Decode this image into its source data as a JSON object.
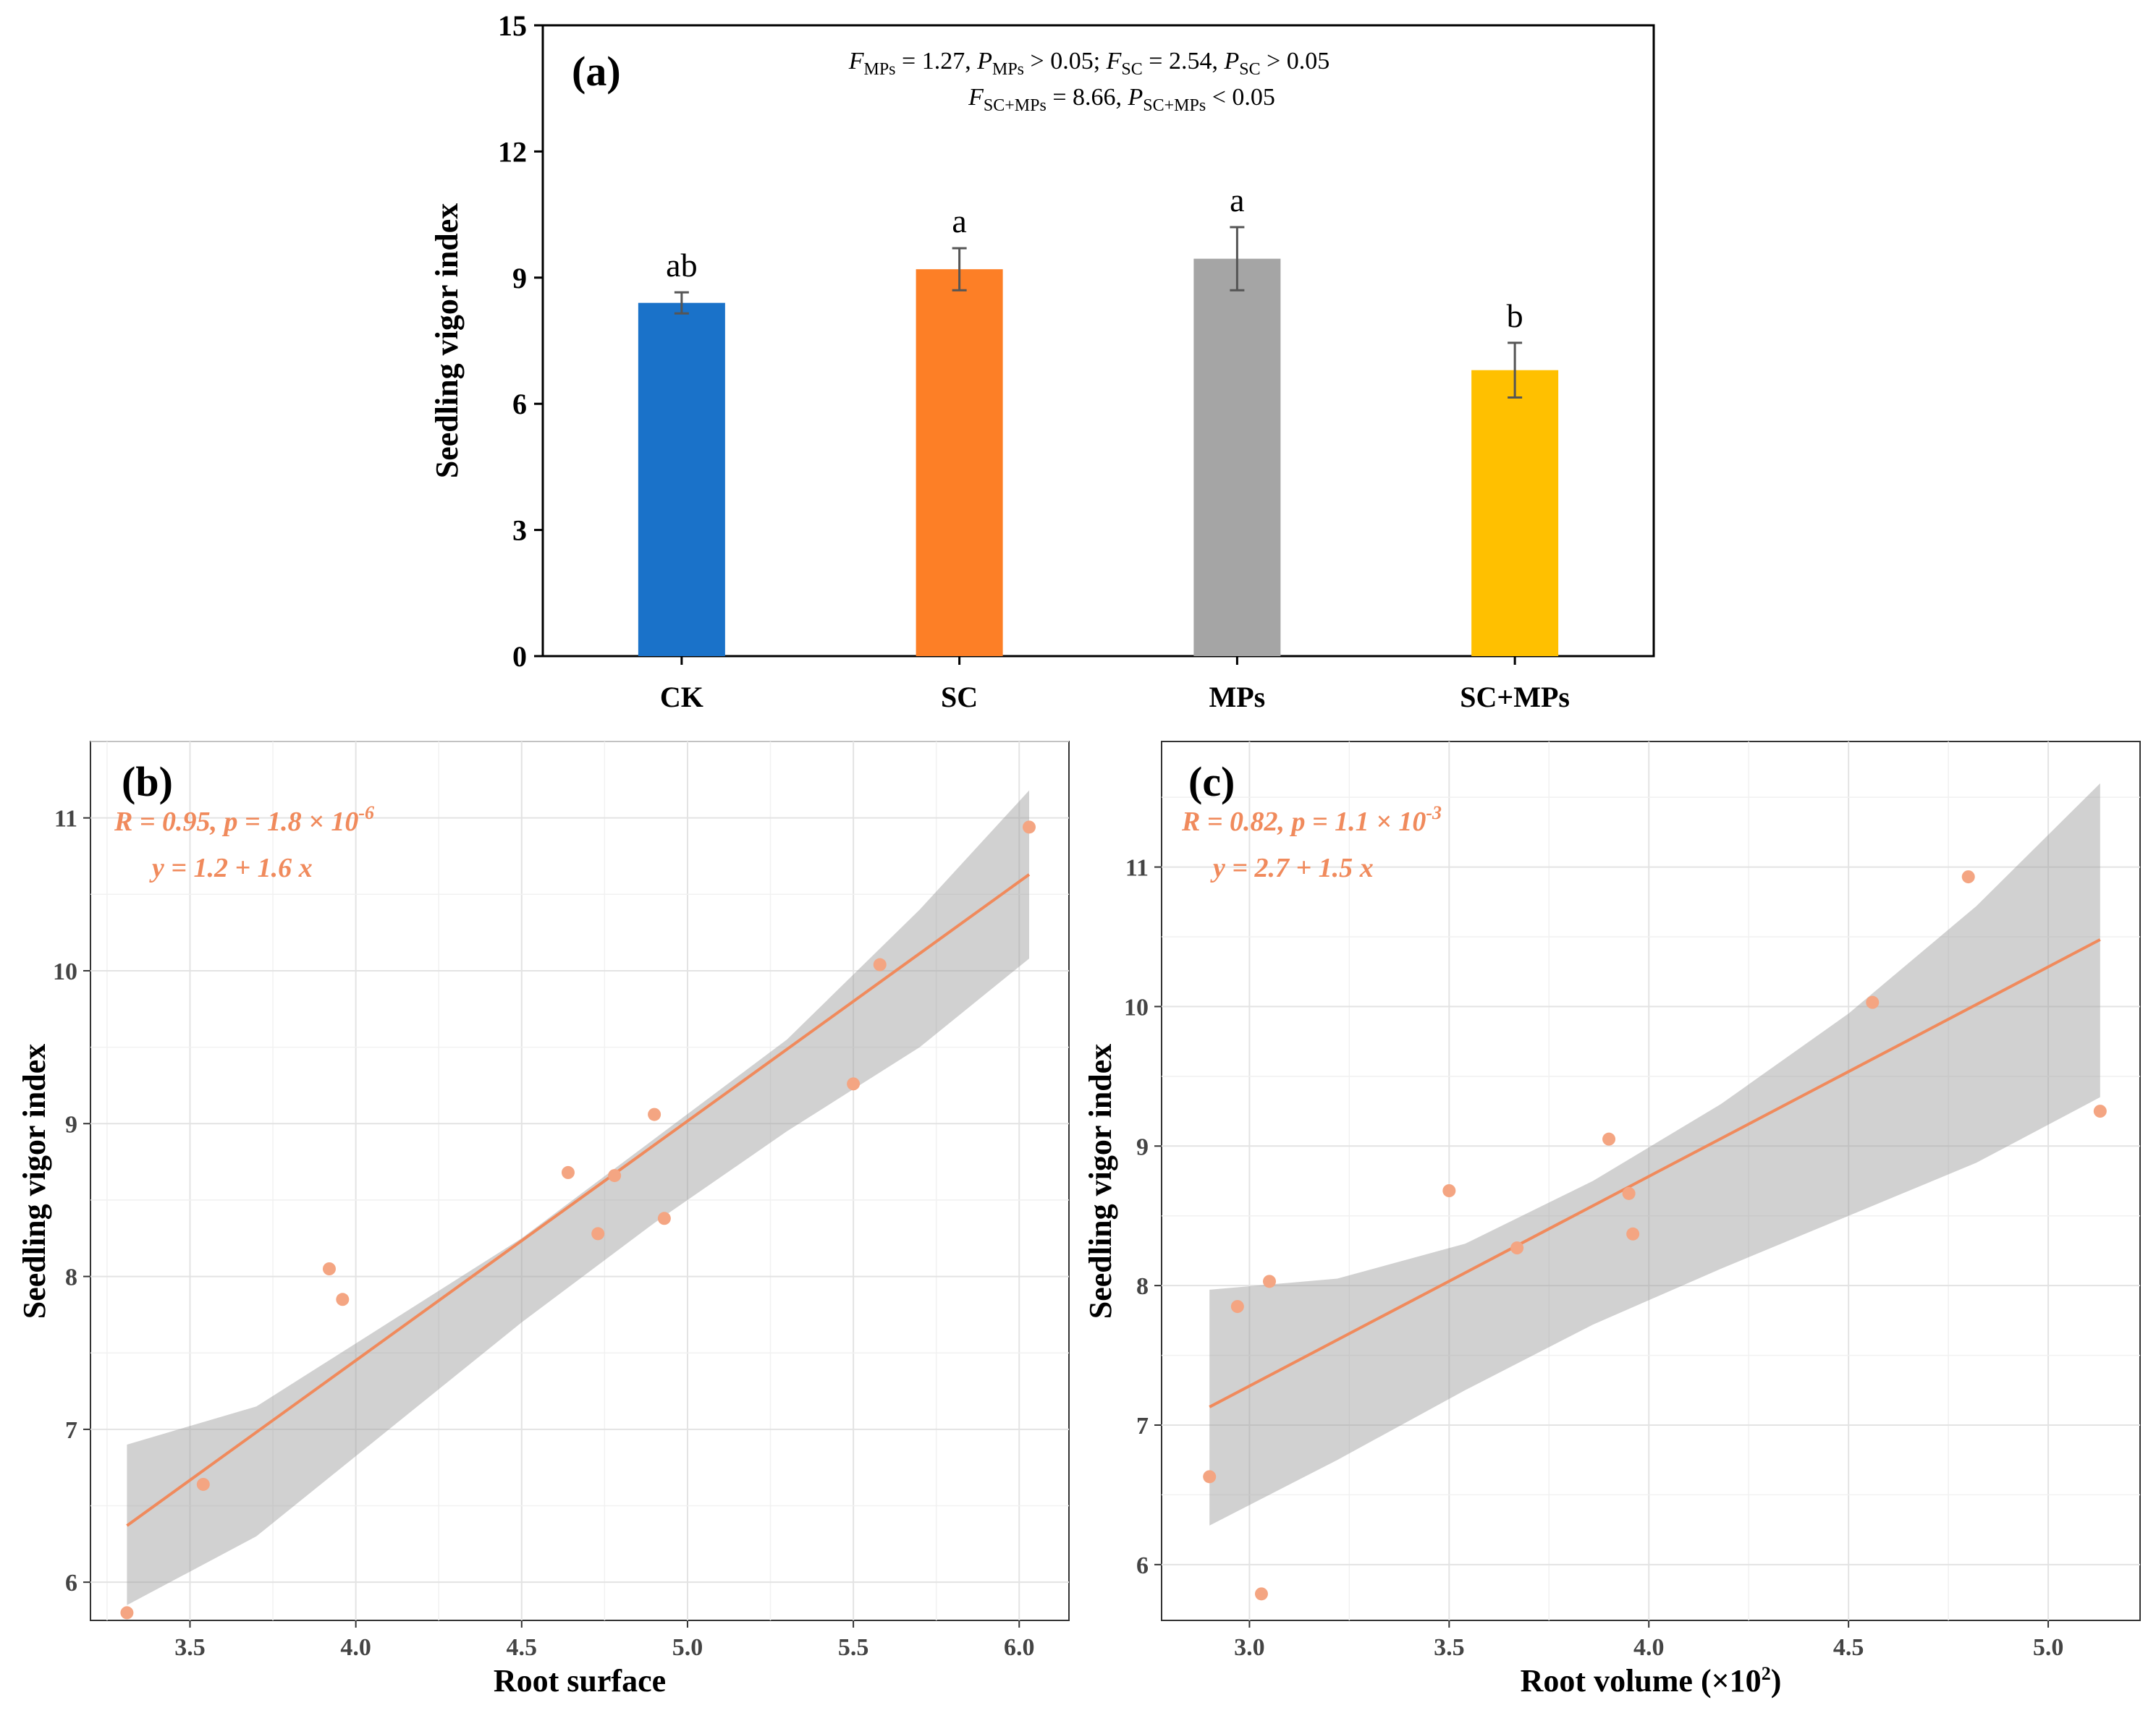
{
  "chart_data": [
    {
      "type": "bar",
      "panel": "(a)",
      "ylabel": "Seedling vigor index",
      "categories": [
        "CK",
        "SC",
        "MPs",
        "SC+MPs"
      ],
      "values": [
        8.4,
        9.2,
        9.45,
        6.8
      ],
      "errors": [
        0.25,
        0.5,
        0.75,
        0.65
      ],
      "significance": [
        "ab",
        "a",
        "a",
        "b"
      ],
      "colors": [
        "#1a72c9",
        "#fd7f26",
        "#a5a5a5",
        "#ffc000"
      ],
      "ylim": [
        0,
        15
      ],
      "yticks": [
        "0",
        "3",
        "6",
        "9",
        "12",
        "15"
      ],
      "stats_line1": "FMPs = 1.27, PMPs > 0.05; FSC = 2.54, PSC > 0.05",
      "stats_line2": "FSC+MPs = 8.66, PSC+MPs < 0.05",
      "stats_parts": {
        "F": "F",
        "P": "P",
        "sub_mps": "MPs",
        "sub_sc": "SC",
        "sub_scmps": "SC+MPs",
        "v_mps": " = 1.27, ",
        "p_mps": " > 0.05; ",
        "v_sc": " = 2.54, ",
        "p_sc": " > 0.05",
        "v_scmps": " = 8.66, ",
        "p_scmps": " < 0.05"
      },
      "grid": false
    },
    {
      "type": "scatter",
      "panel": "(b)",
      "xlabel": "Root surface",
      "ylabel": "Seedling vigor index",
      "x": [
        3.31,
        3.54,
        3.92,
        3.96,
        4.64,
        4.73,
        4.78,
        4.9,
        4.93,
        5.5,
        5.58,
        6.03
      ],
      "y": [
        5.8,
        6.64,
        8.05,
        7.85,
        8.68,
        8.28,
        8.66,
        9.06,
        8.38,
        9.26,
        10.04,
        10.94
      ],
      "fit": {
        "intercept": 1.2,
        "slope": 1.6,
        "x_range": [
          3.31,
          6.03
        ],
        "y_start": 6.37,
        "y_end": 10.63
      },
      "ci_band": {
        "lower": [
          5.85,
          6.3,
          7.0,
          7.7,
          8.35,
          8.95,
          9.5,
          10.08
        ],
        "upper": [
          6.9,
          7.15,
          7.7,
          8.25,
          8.9,
          9.55,
          10.4,
          11.18
        ],
        "x": [
          3.31,
          3.7,
          4.1,
          4.5,
          4.9,
          5.3,
          5.7,
          6.03
        ]
      },
      "xlim": [
        3.2,
        6.15
      ],
      "ylim": [
        5.75,
        11.5
      ],
      "xticks": [
        "3.5",
        "4.0",
        "4.5",
        "5.0",
        "5.5",
        "6.0"
      ],
      "yticks": [
        "6",
        "7",
        "8",
        "9",
        "10",
        "11"
      ],
      "stat_R": "R",
      "stat_p": "p",
      "stat_y": "y",
      "stat_x": "x",
      "stat_mid": " = 0.95, ",
      "stat_pval": " = 1.8 × 10",
      "stat_exp": "-6",
      "stat_eq": " = 1.2 + 1.6 ",
      "point_color": "#f4a582",
      "line_color": "#f08a5c",
      "grid": true
    },
    {
      "type": "scatter",
      "panel": "(c)",
      "xlabel": "Root volume (×10",
      "xlabel_sup": "2",
      "xlabel_end": ")",
      "ylabel": "Seedling vigor index",
      "x": [
        2.9,
        2.97,
        3.03,
        3.05,
        3.5,
        3.67,
        3.9,
        3.95,
        3.96,
        4.56,
        4.8,
        5.13
      ],
      "y": [
        6.63,
        7.85,
        5.79,
        8.03,
        8.68,
        8.27,
        9.05,
        8.66,
        8.37,
        10.03,
        10.93,
        9.25
      ],
      "fit": {
        "intercept": 2.7,
        "slope": 1.5,
        "x_range": [
          2.9,
          5.13
        ],
        "y_start": 7.13,
        "y_end": 10.48
      },
      "ci_band": {
        "lower": [
          6.28,
          6.75,
          7.25,
          7.72,
          8.12,
          8.5,
          8.88,
          9.35
        ],
        "upper": [
          7.97,
          8.05,
          8.3,
          8.75,
          9.3,
          9.95,
          10.72,
          11.6
        ],
        "x": [
          2.9,
          3.22,
          3.54,
          3.86,
          4.18,
          4.5,
          4.82,
          5.13
        ]
      },
      "xlim": [
        2.78,
        5.23
      ],
      "ylim": [
        5.6,
        11.9
      ],
      "xticks": [
        "3.0",
        "3.5",
        "4.0",
        "4.5",
        "5.0"
      ],
      "yticks": [
        "6",
        "7",
        "8",
        "9",
        "10",
        "11"
      ],
      "stat_R": "R",
      "stat_p": "p",
      "stat_y": "y",
      "stat_x": "x",
      "stat_mid": " = 0.82, ",
      "stat_pval": " = 1.1 × 10",
      "stat_exp": "-3",
      "stat_eq": " = 2.7 + 1.5 ",
      "point_color": "#f4a582",
      "line_color": "#f08a5c",
      "grid": true
    }
  ]
}
